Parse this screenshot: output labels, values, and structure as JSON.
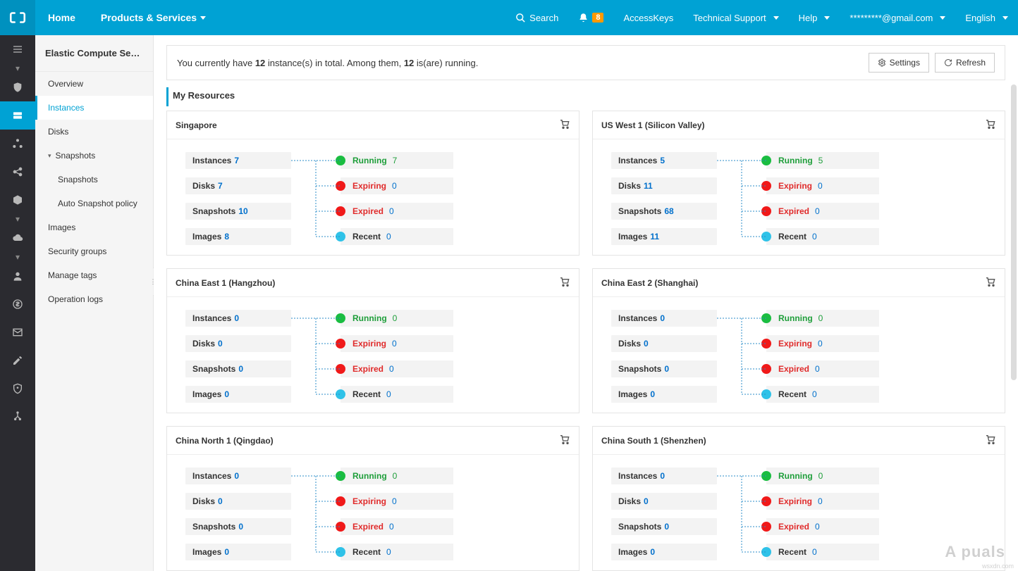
{
  "colors": {
    "topbar": "#00a2d4",
    "running": "#1abd41",
    "expiring": "#f01919",
    "expired": "#f01919",
    "recent": "#2fc2e8",
    "link": "#0070cc"
  },
  "topnav": {
    "home": "Home",
    "products": "Products & Services",
    "search": "Search",
    "notif_count": "8",
    "accesskeys": "AccessKeys",
    "support": "Technical Support",
    "help": "Help",
    "user": "*********@gmail.com",
    "lang": "English"
  },
  "sidebar": {
    "title": "Elastic Compute Serv...",
    "items": [
      {
        "label": "Overview"
      },
      {
        "label": "Instances",
        "active": true
      },
      {
        "label": "Disks"
      },
      {
        "label": "Snapshots",
        "expandable": true
      },
      {
        "label": "Snapshots",
        "sub": true
      },
      {
        "label": "Auto Snapshot policy",
        "sub": true
      },
      {
        "label": "Images"
      },
      {
        "label": "Security groups"
      },
      {
        "label": "Manage tags"
      },
      {
        "label": "Operation logs"
      }
    ]
  },
  "summary": {
    "pre": "You currently have ",
    "count1": "12",
    "mid": " instance(s) in total. Among them, ",
    "count2": "12",
    "post": " is(are) running.",
    "settings": "Settings",
    "refresh": "Refresh"
  },
  "section_title": "My Resources",
  "left_labels": {
    "instances": "Instances",
    "disks": "Disks",
    "snapshots": "Snapshots",
    "images": "Images"
  },
  "right_labels": {
    "running": "Running",
    "expiring": "Expiring",
    "expired": "Expired",
    "recent": "Recent"
  },
  "regions": [
    {
      "name": "Singapore",
      "instances": "7",
      "disks": "7",
      "snapshots": "10",
      "images": "8",
      "running": "7",
      "expiring": "0",
      "expired": "0",
      "recent": "0"
    },
    {
      "name": "US West 1 (Silicon Valley)",
      "instances": "5",
      "disks": "11",
      "snapshots": "68",
      "images": "11",
      "running": "5",
      "expiring": "0",
      "expired": "0",
      "recent": "0"
    },
    {
      "name": "China East 1 (Hangzhou)",
      "instances": "0",
      "disks": "0",
      "snapshots": "0",
      "images": "0",
      "running": "0",
      "expiring": "0",
      "expired": "0",
      "recent": "0"
    },
    {
      "name": "China East 2 (Shanghai)",
      "instances": "0",
      "disks": "0",
      "snapshots": "0",
      "images": "0",
      "running": "0",
      "expiring": "0",
      "expired": "0",
      "recent": "0"
    },
    {
      "name": "China North 1 (Qingdao)",
      "instances": "0",
      "disks": "0",
      "snapshots": "0",
      "images": "0",
      "running": "0",
      "expiring": "0",
      "expired": "0",
      "recent": "0"
    },
    {
      "name": "China South 1 (Shenzhen)",
      "instances": "0",
      "disks": "0",
      "snapshots": "0",
      "images": "0",
      "running": "0",
      "expiring": "0",
      "expired": "0",
      "recent": "0"
    }
  ],
  "watermark": "A   puals",
  "wsxdn": "wsxdn.com"
}
